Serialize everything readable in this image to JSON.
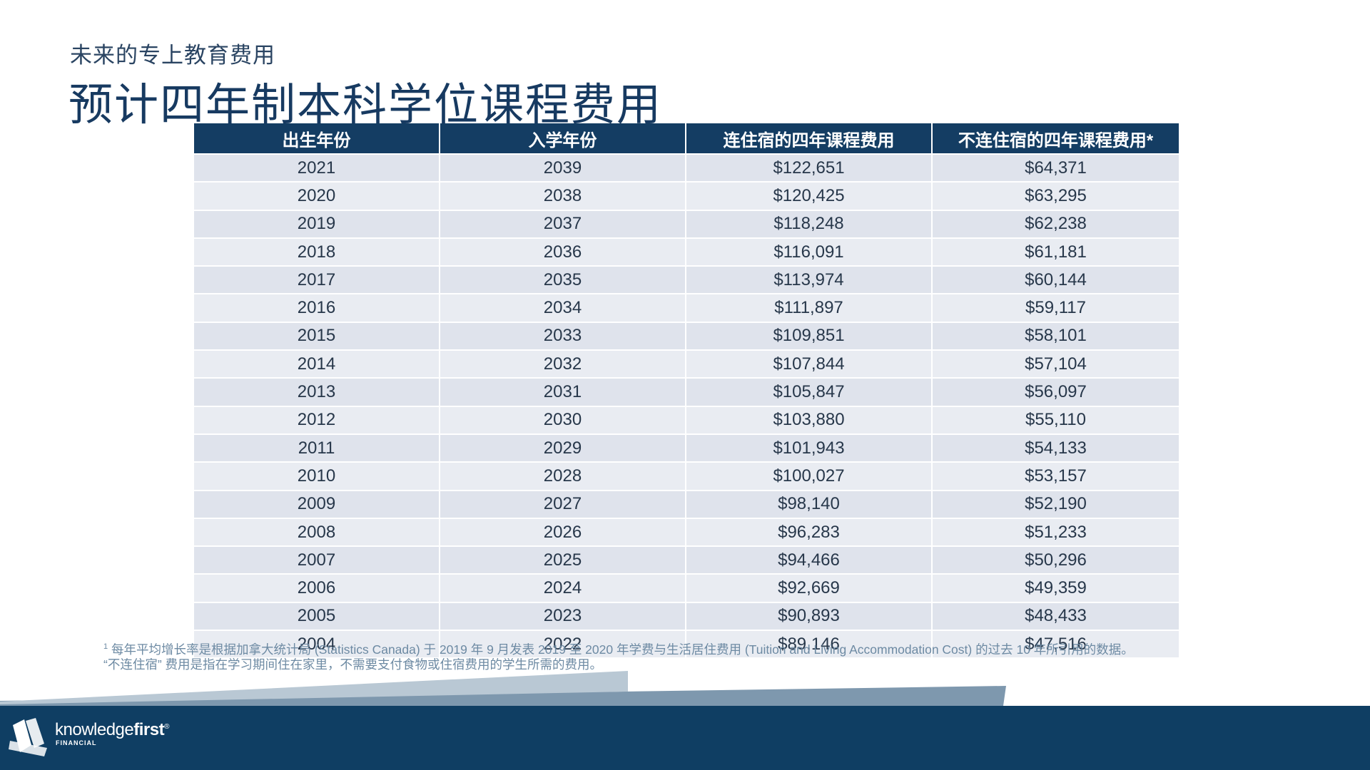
{
  "slide": {
    "subtitle": "未来的专上教育费用",
    "title": "预计四年制本科学位课程费用"
  },
  "table": {
    "headers": [
      "出生年份",
      "入学年份",
      "连住宿的四年课程费用",
      "不连住宿的四年课程费用*"
    ],
    "rows": [
      [
        "2021",
        "2039",
        "$122,651",
        "$64,371"
      ],
      [
        "2020",
        "2038",
        "$120,425",
        "$63,295"
      ],
      [
        "2019",
        "2037",
        "$118,248",
        "$62,238"
      ],
      [
        "2018",
        "2036",
        "$116,091",
        "$61,181"
      ],
      [
        "2017",
        "2035",
        "$113,974",
        "$60,144"
      ],
      [
        "2016",
        "2034",
        "$111,897",
        "$59,117"
      ],
      [
        "2015",
        "2033",
        "$109,851",
        "$58,101"
      ],
      [
        "2014",
        "2032",
        "$107,844",
        "$57,104"
      ],
      [
        "2013",
        "2031",
        "$105,847",
        "$56,097"
      ],
      [
        "2012",
        "2030",
        "$103,880",
        "$55,110"
      ],
      [
        "2011",
        "2029",
        "$101,943",
        "$54,133"
      ],
      [
        "2010",
        "2028",
        "$100,027",
        "$53,157"
      ],
      [
        "2009",
        "2027",
        "$98,140",
        "$52,190"
      ],
      [
        "2008",
        "2026",
        "$96,283",
        "$51,233"
      ],
      [
        "2007",
        "2025",
        "$94,466",
        "$50,296"
      ],
      [
        "2006",
        "2024",
        "$92,669",
        "$49,359"
      ],
      [
        "2005",
        "2023",
        "$90,893",
        "$48,433"
      ],
      [
        "2004",
        "2022",
        "$89,146",
        "$47,516"
      ]
    ]
  },
  "footnotes": {
    "marker": "1",
    "line1": "每年平均增长率是根据加拿大统计局 (Statistics Canada) 于 2019 年 9 月发表 2019 至 2020 年学费与生活居住费用 (Tuition and Living Accommodation Cost) 的过去 10 年所引用的数据。",
    "line2": "“不连住宿” 费用是指在学习期间住在家里，不需要支付食物或住宿费用的学生所需的费用。"
  },
  "brand": {
    "name_light": "knowledge",
    "name_bold": "first",
    "trademark": "®",
    "sub": "FINANCIAL",
    "logo_icon": "knowledge-first-logo-icon"
  },
  "colors": {
    "navy": "#143d63",
    "footer": "#0f3e63",
    "row_light": "#dfe3ec",
    "band_light": "#b9c8d4",
    "band_mid": "#7e98ae"
  }
}
